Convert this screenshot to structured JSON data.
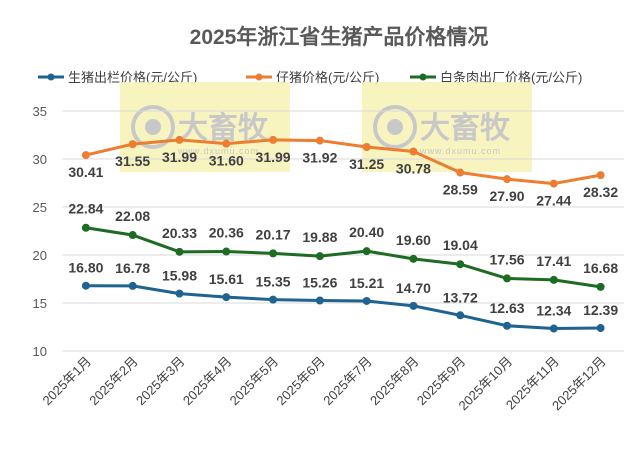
{
  "chart_data": {
    "type": "line",
    "title": "2025年浙江省生猪产品价格情况",
    "categories": [
      "2025年1月",
      "2025年2月",
      "2025年3月",
      "2025年4月",
      "2025年5月",
      "2025年6月",
      "2025年7月",
      "2025年8月",
      "2025年9月",
      "2025年10月",
      "2025年11月",
      "2025年12月"
    ],
    "series": [
      {
        "name": "生猪出栏价格(元/公斤)",
        "color": "#1f6391",
        "values": [
          16.8,
          16.78,
          15.98,
          15.61,
          15.35,
          15.26,
          15.21,
          14.7,
          13.72,
          12.63,
          12.34,
          12.39
        ],
        "labels": [
          "16.80",
          "16.78",
          "15.98",
          "15.61",
          "15.35",
          "15.26",
          "15.21",
          "14.70",
          "13.72",
          "12.63",
          "12.34",
          "12.39"
        ]
      },
      {
        "name": "仔猪价格(元/公斤)",
        "color": "#ed7d31",
        "values": [
          30.41,
          31.55,
          31.99,
          31.6,
          31.99,
          31.92,
          31.25,
          30.78,
          28.59,
          27.9,
          27.44,
          28.32
        ],
        "labels": [
          "30.41",
          "31.55",
          "31.99",
          "31.60",
          "31.99",
          "31.92",
          "31.25",
          "30.78",
          "28.59",
          "27.90",
          "27.44",
          "28.32"
        ]
      },
      {
        "name": "白条肉出厂价格(元/公斤)",
        "color": "#1e6b24",
        "values": [
          22.84,
          22.08,
          20.33,
          20.36,
          20.17,
          19.88,
          20.4,
          19.6,
          19.04,
          17.56,
          17.41,
          16.68
        ],
        "labels": [
          "22.84",
          "22.08",
          "20.33",
          "20.36",
          "20.17",
          "19.88",
          "20.40",
          "19.60",
          "19.04",
          "17.56",
          "17.41",
          "16.68"
        ]
      }
    ],
    "ylim": [
      10,
      35
    ],
    "yticks": [
      "10",
      "15",
      "20",
      "25",
      "30",
      "35"
    ],
    "grid": true,
    "legend": "top"
  },
  "watermark": {
    "brand": "大畜牧",
    "url": "www.dxumu.com"
  }
}
